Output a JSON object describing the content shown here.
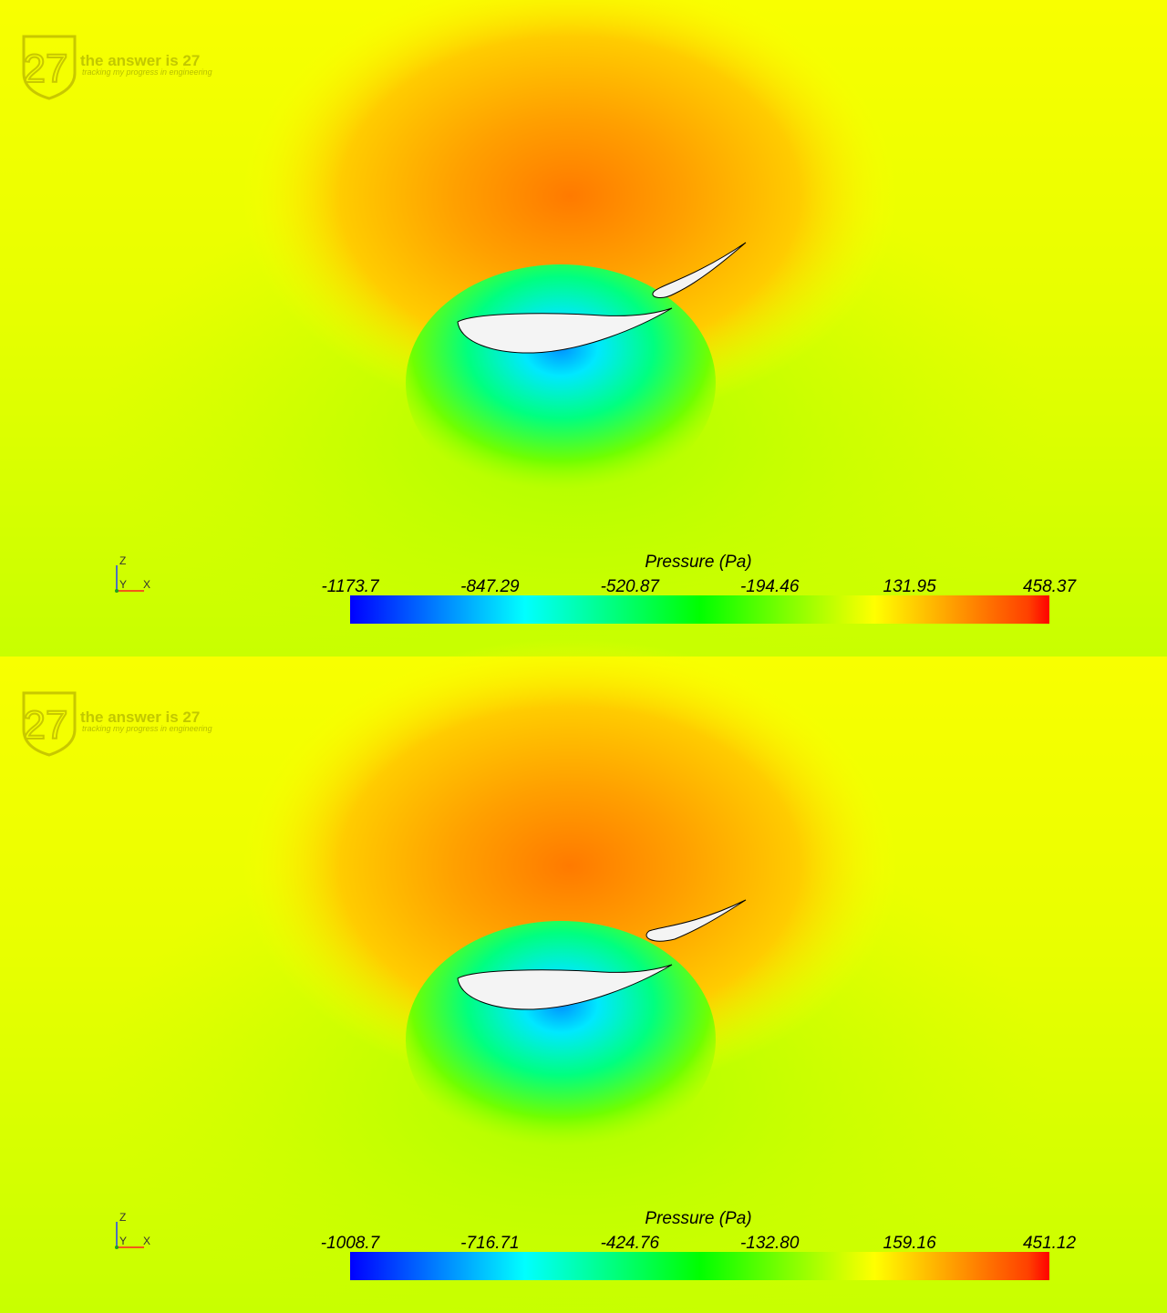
{
  "panels": [
    {
      "logo": {
        "mark": "27",
        "title": "the answer is 27",
        "subtitle": "tracking my progress in engineering"
      },
      "axes": {
        "z": "Z",
        "y": "Y",
        "x": "X"
      },
      "legend": {
        "title": "Pressure (Pa)",
        "ticks": [
          -1173.7,
          -847.29,
          -520.87,
          -194.46,
          131.95,
          458.37
        ]
      }
    },
    {
      "logo": {
        "mark": "27",
        "title": "the answer is 27",
        "subtitle": "tracking my progress in engineering"
      },
      "axes": {
        "z": "Z",
        "y": "Y",
        "x": "X"
      },
      "legend": {
        "title": "Pressure (Pa)",
        "ticks": [
          -1008.7,
          -716.71,
          -424.76,
          {
            "value": -132.8,
            "label": "-132.80"
          },
          159.16,
          451.12
        ]
      }
    }
  ]
}
